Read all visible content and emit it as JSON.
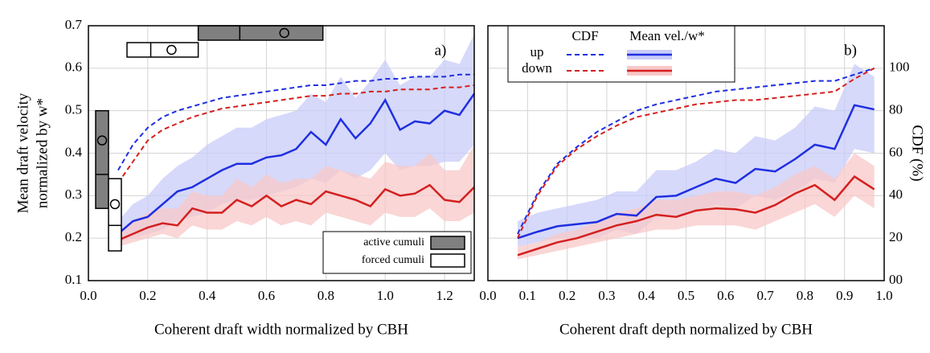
{
  "chart_data": [
    {
      "type": "line",
      "ylabel": [
        "Mean draft velocity",
        "normalized by w*"
      ],
      "xlabel": "Coherent draft width normalized by CBH",
      "annotation": "a)",
      "xlim": [
        0,
        1.3
      ],
      "ylim": [
        0.1,
        0.7
      ],
      "y2lim": [
        0,
        120
      ],
      "xticks": [
        {
          "value": 0,
          "label": "0.0"
        },
        0.2,
        0.4,
        0.6,
        0.8,
        {
          "value": 1,
          "label": "1.0"
        },
        1.2
      ],
      "yticks": [
        0.1,
        0.2,
        0.3,
        0.4,
        0.5,
        0.6,
        0.7
      ],
      "grid": true,
      "x": [
        0.1,
        0.15,
        0.2,
        0.25,
        0.3,
        0.35,
        0.4,
        0.45,
        0.5,
        0.55,
        0.6,
        0.65,
        0.7,
        0.75,
        0.8,
        0.85,
        0.9,
        0.95,
        1.0,
        1.05,
        1.1,
        1.15,
        1.2,
        1.25,
        1.3
      ],
      "bands": [
        {
          "color": "#c8ccf8",
          "lower": [
            0.19,
            0.2,
            0.21,
            0.22,
            0.24,
            0.25,
            0.26,
            0.28,
            0.29,
            0.29,
            0.3,
            0.31,
            0.32,
            0.34,
            0.33,
            0.36,
            0.34,
            0.36,
            0.4,
            0.36,
            0.37,
            0.37,
            0.38,
            0.38,
            0.42
          ],
          "upper": [
            0.24,
            0.28,
            0.3,
            0.34,
            0.37,
            0.39,
            0.42,
            0.44,
            0.46,
            0.46,
            0.48,
            0.49,
            0.5,
            0.54,
            0.52,
            0.58,
            0.53,
            0.57,
            0.62,
            0.56,
            0.58,
            0.58,
            0.62,
            0.61,
            0.68
          ]
        },
        {
          "color": "#f8c8c8",
          "lower": [
            0.18,
            0.19,
            0.2,
            0.21,
            0.2,
            0.23,
            0.22,
            0.22,
            0.24,
            0.23,
            0.25,
            0.23,
            0.24,
            0.23,
            0.26,
            0.25,
            0.24,
            0.23,
            0.26,
            0.25,
            0.25,
            0.27,
            0.24,
            0.24,
            0.26
          ],
          "upper": [
            0.21,
            0.24,
            0.26,
            0.27,
            0.27,
            0.31,
            0.3,
            0.3,
            0.34,
            0.32,
            0.35,
            0.33,
            0.34,
            0.34,
            0.37,
            0.36,
            0.35,
            0.34,
            0.38,
            0.37,
            0.37,
            0.4,
            0.36,
            0.36,
            0.42
          ]
        }
      ],
      "series": [
        {
          "color": "#1f2fe0",
          "values": [
            0.21,
            0.24,
            0.25,
            0.28,
            0.31,
            0.32,
            0.34,
            0.36,
            0.375,
            0.375,
            0.39,
            0.395,
            0.41,
            0.45,
            0.42,
            0.48,
            0.435,
            0.47,
            0.525,
            0.455,
            0.475,
            0.47,
            0.5,
            0.49,
            0.54
          ]
        },
        {
          "color": "#d42020",
          "values": [
            0.195,
            0.21,
            0.225,
            0.235,
            0.23,
            0.27,
            0.26,
            0.26,
            0.29,
            0.275,
            0.3,
            0.275,
            0.29,
            0.28,
            0.31,
            0.3,
            0.29,
            0.275,
            0.315,
            0.3,
            0.305,
            0.325,
            0.29,
            0.285,
            0.32
          ]
        },
        {
          "color": "#1f2fe0",
          "dash": true,
          "axis": "y2",
          "values": [
            52,
            64,
            72,
            77,
            80,
            82,
            84,
            86,
            87,
            88,
            89,
            90,
            91,
            92,
            92,
            93,
            94,
            94,
            95,
            95,
            96,
            96,
            96,
            97,
            97
          ]
        },
        {
          "color": "#d42020",
          "dash": true,
          "axis": "y2",
          "values": [
            46,
            56,
            66,
            71,
            74,
            77,
            79,
            81,
            82,
            83,
            84,
            85,
            86,
            87,
            87,
            88,
            88,
            89,
            89,
            90,
            90,
            90,
            91,
            91,
            92
          ]
        }
      ],
      "boxes": [
        {
          "name": "active cumuli",
          "color": "#808080",
          "horizontal": {
            "low": 0.37,
            "median": 0.51,
            "high": 0.79,
            "mean": 0.66
          },
          "vertical": {
            "low": 0.27,
            "median": 0.35,
            "high": 0.5,
            "mean": 0.43
          }
        },
        {
          "name": "forced cumuli",
          "color": "#ffffff",
          "horizontal": {
            "low": 0.13,
            "median": 0.21,
            "high": 0.37,
            "mean": 0.28
          },
          "vertical": {
            "low": 0.17,
            "median": 0.23,
            "high": 0.34,
            "mean": 0.28
          }
        }
      ]
    },
    {
      "type": "line",
      "xlabel": "Coherent draft depth normalized by CBH",
      "y2label": "CDF (%)",
      "annotation": "b)",
      "xlim": [
        0,
        1
      ],
      "ylim": [
        0.1,
        0.7
      ],
      "y2lim": [
        0,
        120
      ],
      "xticks": [
        {
          "value": 0,
          "label": "0.0"
        },
        0.1,
        0.2,
        0.3,
        0.4,
        0.5,
        0.6,
        0.7,
        0.8,
        0.9,
        {
          "value": 1,
          "label": "1.0"
        }
      ],
      "y2ticks": [
        {
          "value": 0,
          "label": "00"
        },
        20,
        40,
        60,
        80,
        100
      ],
      "grid": true,
      "legend": {
        "columns": [
          "CDF",
          "Mean vel./w*"
        ],
        "rows": [
          "up",
          "down"
        ]
      },
      "x": [
        0.075,
        0.125,
        0.175,
        0.225,
        0.275,
        0.325,
        0.375,
        0.425,
        0.475,
        0.525,
        0.575,
        0.625,
        0.675,
        0.725,
        0.775,
        0.825,
        0.875,
        0.925,
        0.975
      ],
      "bands": [
        {
          "color": "#c8ccf8",
          "lower": [
            0.18,
            0.19,
            0.2,
            0.2,
            0.2,
            0.22,
            0.21,
            0.25,
            0.25,
            0.26,
            0.28,
            0.27,
            0.3,
            0.29,
            0.31,
            0.34,
            0.33,
            0.41,
            0.4
          ],
          "upper": [
            0.24,
            0.26,
            0.27,
            0.28,
            0.29,
            0.31,
            0.31,
            0.36,
            0.36,
            0.38,
            0.41,
            0.4,
            0.44,
            0.43,
            0.46,
            0.51,
            0.5,
            0.61,
            0.58
          ]
        },
        {
          "color": "#f8c8c8",
          "lower": [
            0.15,
            0.16,
            0.17,
            0.18,
            0.19,
            0.2,
            0.21,
            0.22,
            0.22,
            0.23,
            0.23,
            0.23,
            0.22,
            0.24,
            0.26,
            0.28,
            0.25,
            0.3,
            0.27
          ],
          "upper": [
            0.18,
            0.19,
            0.21,
            0.22,
            0.24,
            0.26,
            0.27,
            0.29,
            0.29,
            0.3,
            0.31,
            0.31,
            0.3,
            0.32,
            0.35,
            0.37,
            0.34,
            0.4,
            0.37
          ]
        }
      ],
      "series": [
        {
          "color": "#1f2fe0",
          "values": [
            0.2,
            0.215,
            0.228,
            0.233,
            0.238,
            0.257,
            0.253,
            0.297,
            0.3,
            0.32,
            0.34,
            0.33,
            0.363,
            0.357,
            0.386,
            0.42,
            0.41,
            0.513,
            0.503
          ]
        },
        {
          "color": "#d42020",
          "values": [
            0.16,
            0.175,
            0.19,
            0.2,
            0.215,
            0.23,
            0.24,
            0.255,
            0.25,
            0.265,
            0.27,
            0.268,
            0.26,
            0.278,
            0.305,
            0.325,
            0.29,
            0.345,
            0.315
          ]
        },
        {
          "color": "#1f2fe0",
          "dash": true,
          "axis": "y2",
          "values": [
            22,
            41,
            55,
            63,
            70,
            75,
            80,
            83,
            85,
            87,
            89,
            90,
            91,
            92,
            93,
            94,
            94,
            97,
            100
          ]
        },
        {
          "color": "#d42020",
          "dash": true,
          "axis": "y2",
          "values": [
            20,
            40,
            54,
            62,
            68,
            73,
            77,
            79,
            81,
            83,
            84,
            85,
            85,
            86,
            87,
            88,
            89,
            95,
            100
          ]
        }
      ]
    }
  ]
}
